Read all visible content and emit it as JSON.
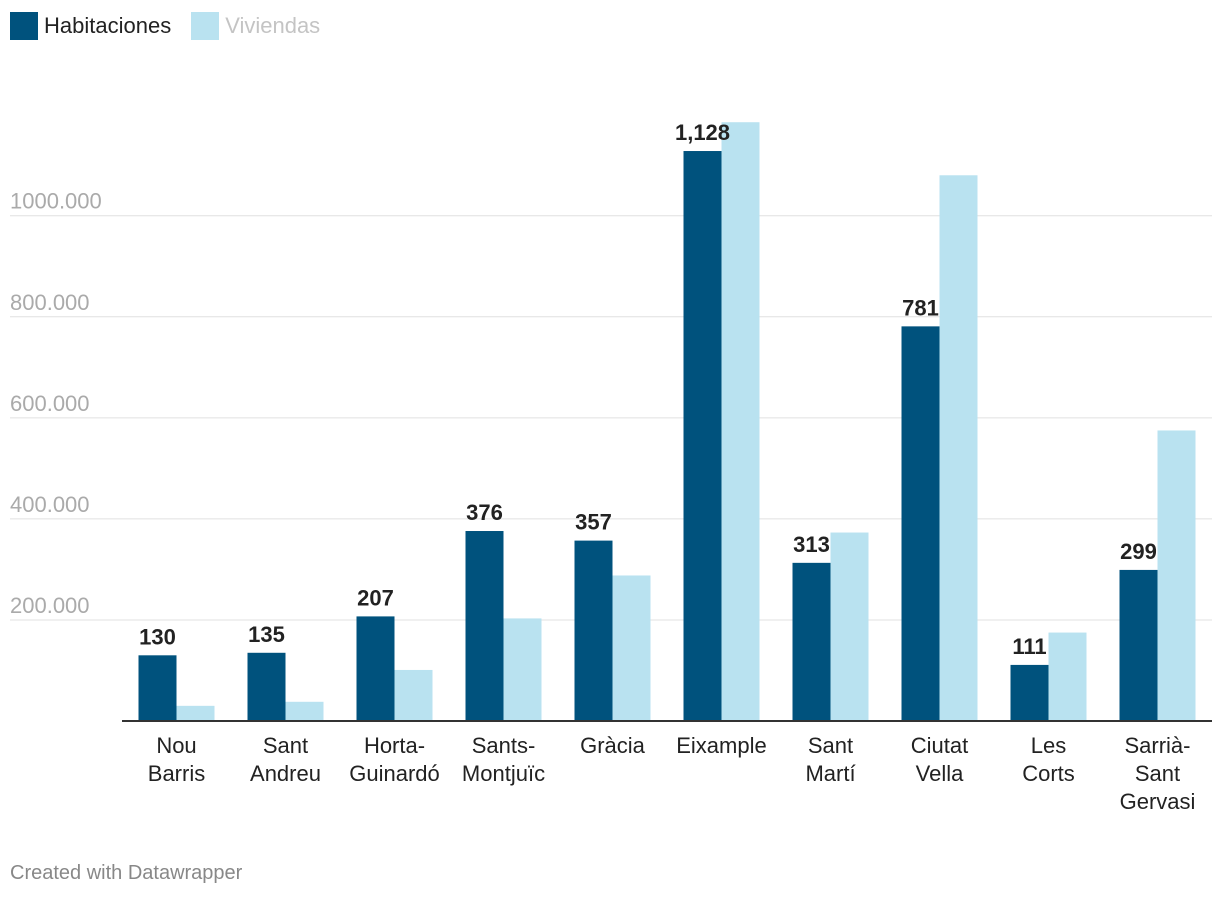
{
  "chart_data": {
    "type": "bar",
    "categories": [
      [
        "Nou",
        "Barris"
      ],
      [
        "Sant",
        "Andreu"
      ],
      [
        "Horta-",
        "Guinardó"
      ],
      [
        "Sants-",
        "Montjuïc"
      ],
      [
        "Gràcia"
      ],
      [
        "Eixample"
      ],
      [
        "Sant",
        "Martí"
      ],
      [
        "Ciutat",
        "Vella"
      ],
      [
        "Les",
        "Corts"
      ],
      [
        "Sarrià-",
        "Sant",
        "Gervasi"
      ]
    ],
    "series": [
      {
        "name": "Habitaciones",
        "color": "#00527d",
        "values": [
          130,
          135,
          207,
          376,
          357,
          1128,
          313,
          781,
          111,
          299
        ],
        "labels": [
          "130",
          "135",
          "207",
          "376",
          "357",
          "1,128",
          "313",
          "781",
          "111",
          "299"
        ]
      },
      {
        "name": "Viviendas",
        "color": "#b9e2f0",
        "values": [
          30,
          38,
          101,
          203,
          288,
          1185,
          373,
          1080,
          175,
          575
        ]
      }
    ],
    "yticks": [
      200,
      400,
      600,
      800,
      1000
    ],
    "ytick_labels": [
      "200.000",
      "400.000",
      "600.000",
      "800.000",
      "1000.000"
    ],
    "ylim": [
      0,
      1200
    ],
    "legend_position": "top-left",
    "grid": true
  },
  "footer": "Created with Datawrapper"
}
